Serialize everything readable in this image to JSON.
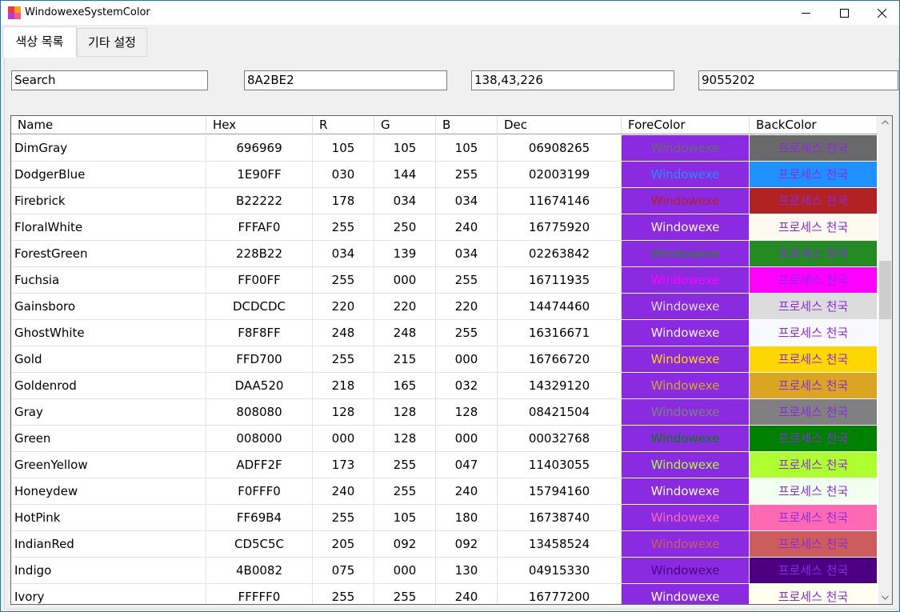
{
  "window": {
    "title": "WindowexeSystemColor"
  },
  "tabs": [
    "색상 목록",
    "기타 설정"
  ],
  "inputs": [
    "Search",
    "8A2BE2",
    "138,43,226",
    "9055202"
  ],
  "table": {
    "columns": [
      "Name",
      "Hex",
      "R",
      "G",
      "B",
      "Dec",
      "ForeColor",
      "BackColor"
    ],
    "rows": [
      [
        "DimGray",
        "696969",
        "105",
        "105",
        "105",
        "06908265",
        "Windowexe",
        "프로세스 천국"
      ],
      [
        "DodgerBlue",
        "1E90FF",
        "030",
        "144",
        "255",
        "02003199",
        "Windowexe",
        "프로세스 천국"
      ],
      [
        "Firebrick",
        "B22222",
        "178",
        "034",
        "034",
        "11674146",
        "Windowexe",
        "프로세스 천국"
      ],
      [
        "FloralWhite",
        "FFFAF0",
        "255",
        "250",
        "240",
        "16775920",
        "Windowexe",
        "프로세스 천국"
      ],
      [
        "ForestGreen",
        "228B22",
        "034",
        "139",
        "034",
        "02263842",
        "Windowexe",
        "프로세스 천국"
      ],
      [
        "Fuchsia",
        "FF00FF",
        "255",
        "000",
        "255",
        "16711935",
        "Windowexe",
        "프로세스 천국"
      ],
      [
        "Gainsboro",
        "DCDCDC",
        "220",
        "220",
        "220",
        "14474460",
        "Windowexe",
        "프로세스 천국"
      ],
      [
        "GhostWhite",
        "F8F8FF",
        "248",
        "248",
        "255",
        "16316671",
        "Windowexe",
        "프로세스 천국"
      ],
      [
        "Gold",
        "FFD700",
        "255",
        "215",
        "000",
        "16766720",
        "Windowexe",
        "프로세스 천국"
      ],
      [
        "Goldenrod",
        "DAA520",
        "218",
        "165",
        "032",
        "14329120",
        "Windowexe",
        "프로세스 천국"
      ],
      [
        "Gray",
        "808080",
        "128",
        "128",
        "128",
        "08421504",
        "Windowexe",
        "프로세스 천국"
      ],
      [
        "Green",
        "008000",
        "000",
        "128",
        "000",
        "00032768",
        "Windowexe",
        "프로세스 천국"
      ],
      [
        "GreenYellow",
        "ADFF2F",
        "173",
        "255",
        "047",
        "11403055",
        "Windowexe",
        "프로세스 천국"
      ],
      [
        "Honeydew",
        "F0FFF0",
        "240",
        "255",
        "240",
        "15794160",
        "Windowexe",
        "프로세스 천국"
      ],
      [
        "HotPink",
        "FF69B4",
        "255",
        "105",
        "180",
        "16738740",
        "Windowexe",
        "프로세스 천국"
      ],
      [
        "IndianRed",
        "CD5C5C",
        "205",
        "092",
        "092",
        "13458524",
        "Windowexe",
        "프로세스 천국"
      ],
      [
        "Indigo",
        "4B0082",
        "075",
        "000",
        "130",
        "04915330",
        "Windowexe",
        "프로세스 천국"
      ],
      [
        "Ivory",
        "FFFFF0",
        "255",
        "255",
        "240",
        "16777200",
        "Windowexe",
        "프로세스 천국"
      ]
    ]
  }
}
